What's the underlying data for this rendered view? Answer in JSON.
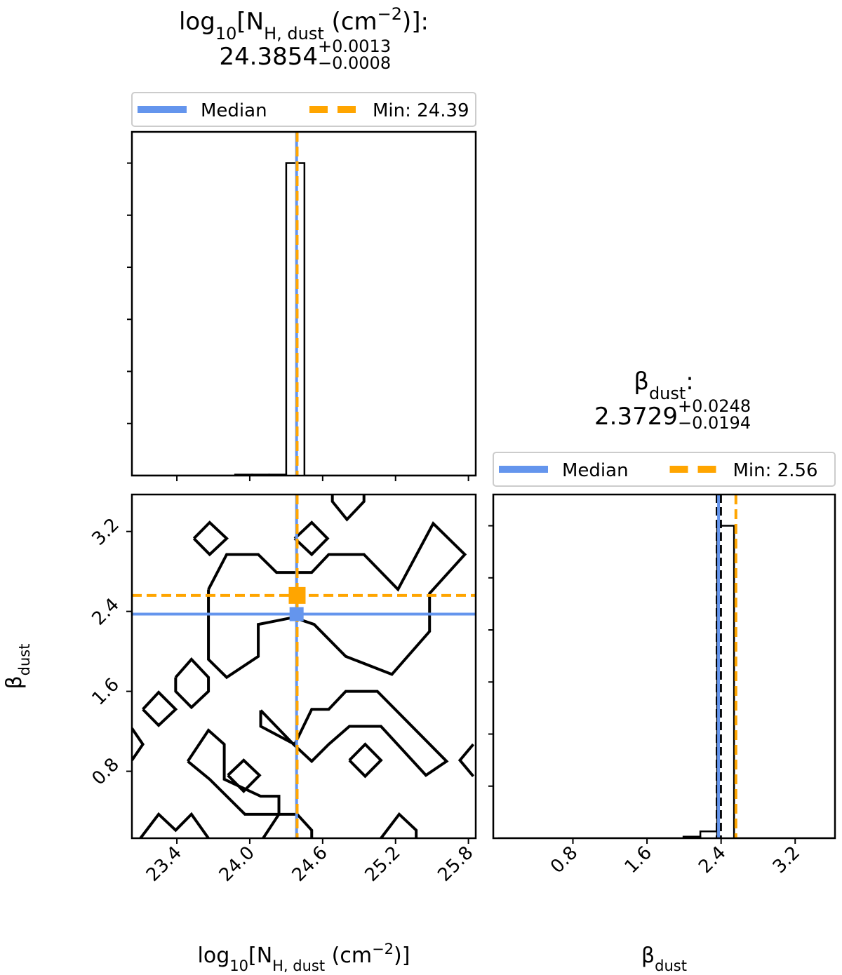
{
  "chart_data": [
    {
      "type": "histogram",
      "title": [
        "log",
        "10",
        "[N",
        "H, dust",
        " (cm",
        "−2",
        ")]:"
      ],
      "title_value": 24.3854,
      "title_err_plus": {
        "value": 0.0013,
        "label": "+0.0013"
      },
      "title_err_minus": {
        "value": 0.0008,
        "label": "−0.0008"
      },
      "lines": [
        {
          "name": "Median",
          "color": "#6495ed"
        },
        {
          "name": "Min: 24.39",
          "color": "#ffa500",
          "value": 24.39,
          "dashed": true
        }
      ],
      "legend": "upper center",
      "bins": [
        23.03,
        23.17,
        23.31,
        23.45,
        23.6,
        23.74,
        23.88,
        24.02,
        24.16,
        24.3,
        24.45,
        24.59,
        24.73,
        24.87,
        25.01,
        25.15,
        25.29,
        25.44,
        25.58,
        25.72,
        25.86
      ],
      "counts": [
        0,
        0,
        0,
        0,
        0,
        0,
        0.003,
        0.003,
        0.003,
        1,
        0,
        0,
        0,
        0,
        0,
        0,
        0,
        0,
        0,
        0
      ],
      "color": "#000000",
      "xlim": [
        23.03,
        25.86
      ],
      "ylim": [
        0,
        1.1
      ]
    },
    {
      "type": "contour",
      "x_label": [
        "log",
        "10",
        "[N",
        "H, dust",
        " (cm",
        "−2",
        ")]"
      ],
      "y_label": [
        "β",
        "dust"
      ],
      "xlim": [
        23.03,
        25.86
      ],
      "ylim": [
        0.13,
        3.57
      ],
      "xticks": [
        23.4,
        {
          "value": 24,
          "label": "24.0"
        },
        24.6,
        25.2,
        25.8
      ],
      "yticks": [
        0.8,
        1.6,
        2.4,
        3.2
      ],
      "color": "#000000",
      "contours": [
        {
          "x": [
            23.54,
            23.67,
            23.81,
            23.67,
            23.54
          ],
          "y": [
            3.13,
            3.29,
            3.13,
            2.97,
            3.13
          ]
        },
        {
          "x": [
            24.68,
            24.68,
            24.8,
            24.94,
            24.94
          ],
          "y": [
            3.57,
            3.5,
            3.32,
            3.5,
            3.57
          ]
        },
        {
          "x": [
            24.37,
            24.51,
            24.64,
            24.51,
            24.37
          ],
          "y": [
            3.13,
            3.29,
            3.13,
            2.97,
            3.13
          ]
        },
        {
          "x": [
            23.12,
            23.25,
            23.39,
            23.25,
            23.12
          ],
          "y": [
            1.42,
            1.59,
            1.42,
            1.26,
            1.42
          ]
        },
        {
          "x": [
            24.82,
            24.95,
            25.08,
            24.95,
            24.82
          ],
          "y": [
            0.91,
            1.07,
            0.91,
            0.75,
            0.91
          ]
        },
        {
          "x": [
            23.82,
            23.95,
            24.08,
            23.95,
            23.82
          ],
          "y": [
            0.76,
            0.91,
            0.76,
            0.6,
            0.76
          ]
        },
        {
          "x": [
            25.84,
            25.73,
            25.84
          ],
          "y": [
            1.07,
            0.91,
            0.75
          ]
        },
        {
          "x": [
            23.03,
            23.12,
            23.03
          ],
          "y": [
            1.23,
            1.07,
            0.91
          ]
        },
        {
          "x": [
            23.1,
            23.25,
            23.39,
            23.52,
            23.66
          ],
          "y": [
            0.13,
            0.37,
            0.21,
            0.37,
            0.13
          ]
        },
        {
          "x": [
            24.11,
            24.24,
            24.39,
            24.51,
            24.51
          ],
          "y": [
            0.13,
            0.37,
            0.37,
            0.21,
            0.13
          ]
        },
        {
          "x": [
            25.08,
            25.23,
            25.37,
            25.37
          ],
          "y": [
            0.13,
            0.37,
            0.21,
            0.13
          ]
        },
        {
          "x": [
            23.66,
            23.81,
            24.07,
            24.22,
            24.51,
            24.65,
            24.94,
            25.22,
            25.51,
            25.77,
            25.48,
            25.48,
            25.17,
            24.79,
            24.53,
            24.36,
            24.07,
            24.07,
            23.81,
            23.66,
            23.66
          ],
          "y": [
            2.62,
            2.97,
            2.97,
            2.79,
            2.79,
            2.97,
            2.97,
            2.62,
            3.28,
            2.97,
            2.58,
            2.2,
            1.77,
            1.95,
            2.27,
            2.34,
            2.27,
            1.95,
            1.74,
            1.92,
            2.62
          ]
        },
        {
          "x": [
            23.39,
            23.52,
            23.66,
            23.66,
            23.52,
            23.39,
            23.39
          ],
          "y": [
            1.74,
            1.92,
            1.74,
            1.6,
            1.44,
            1.6,
            1.74
          ]
        },
        {
          "x": [
            24.09,
            24.09,
            24.37,
            24.51,
            24.65,
            24.79,
            25.05,
            25.62,
            25.45,
            25.08,
            24.82,
            24.65,
            24.51,
            24.36,
            24.09
          ],
          "y": [
            1.41,
            1.25,
            1.07,
            1.42,
            1.42,
            1.6,
            1.6,
            0.9,
            0.76,
            1.25,
            1.25,
            1.07,
            0.9,
            1.07,
            1.41
          ]
        },
        {
          "x": [
            23.49,
            23.66,
            23.79,
            23.79,
            24.09,
            24.24,
            24.24,
            23.96,
            23.67,
            23.49
          ],
          "y": [
            0.9,
            1.21,
            1.07,
            0.72,
            0.55,
            0.55,
            0.37,
            0.37,
            0.72,
            0.9
          ]
        }
      ]
    },
    {
      "type": "histogram",
      "title": [
        "β",
        "dust",
        ":"
      ],
      "title_value": 2.3729,
      "title_err_plus": {
        "value": 0.0248,
        "label": "+0.0248"
      },
      "title_err_minus": {
        "value": 0.0194,
        "label": "−0.0194"
      },
      "lines": [
        {
          "name": "Median",
          "color": "#6495ed"
        },
        {
          "name": "Min: 2.56",
          "color": "#ffa500",
          "value": 2.56,
          "dashed": true
        }
      ],
      "legend": "upper center",
      "x_label": [
        "β",
        "dust"
      ],
      "bins": [
        -0.008,
        0.174,
        0.356,
        0.538,
        0.72,
        0.902,
        1.084,
        1.266,
        1.448,
        1.63,
        1.812,
        1.994,
        2.176,
        2.358,
        2.54,
        2.722,
        2.904,
        3.086,
        3.268,
        3.45,
        3.632
      ],
      "counts": [
        0,
        0,
        0,
        0,
        0,
        0,
        0,
        0,
        0,
        0,
        0,
        0.005,
        0.022,
        1,
        0,
        0,
        0,
        0,
        0,
        0
      ],
      "color": "#000000",
      "xlim": [
        -0.06,
        3.63
      ],
      "ylim": [
        0,
        1.1
      ],
      "xticks": [
        0.8,
        1.6,
        2.4,
        3.2
      ]
    }
  ]
}
